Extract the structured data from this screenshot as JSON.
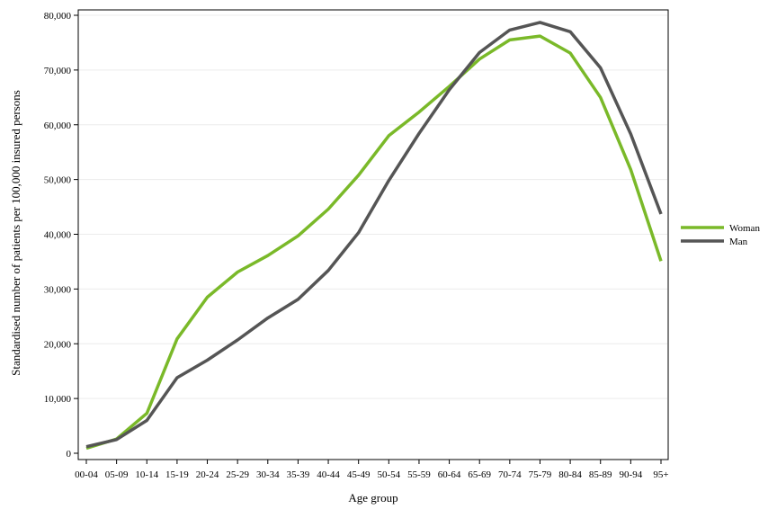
{
  "chart_data": {
    "type": "line",
    "title": "",
    "xlabel": "Age group",
    "ylabel": "Standardised number of patients per 100,000 insured persons",
    "categories": [
      "00-04",
      "05-09",
      "10-14",
      "15-19",
      "20-24",
      "25-29",
      "30-34",
      "35-39",
      "40-44",
      "45-49",
      "50-54",
      "55-59",
      "60-64",
      "65-69",
      "70-74",
      "75-79",
      "80-84",
      "85-89",
      "90-94",
      "95+"
    ],
    "ylim": [
      0,
      80000
    ],
    "yticks": [
      0,
      10000,
      20000,
      30000,
      40000,
      50000,
      60000,
      70000,
      80000
    ],
    "ytick_labels": [
      "0",
      "10,000",
      "20,000",
      "30,000",
      "40,000",
      "50,000",
      "60,000",
      "70,000",
      "80,000"
    ],
    "grid": true,
    "legend_position": "right",
    "series": [
      {
        "name": "Woman",
        "color": "#7ab929",
        "values": [
          900,
          2600,
          7300,
          20900,
          28500,
          33100,
          36100,
          39700,
          44600,
          50800,
          58000,
          62300,
          67000,
          72000,
          75500,
          76200,
          73100,
          65000,
          51800,
          35100
        ]
      },
      {
        "name": "Man",
        "color": "#555555",
        "values": [
          1200,
          2500,
          6000,
          13800,
          17000,
          20700,
          24700,
          28100,
          33400,
          40300,
          49800,
          58400,
          66400,
          73200,
          77300,
          78700,
          77000,
          70400,
          58300,
          43700
        ]
      }
    ]
  }
}
